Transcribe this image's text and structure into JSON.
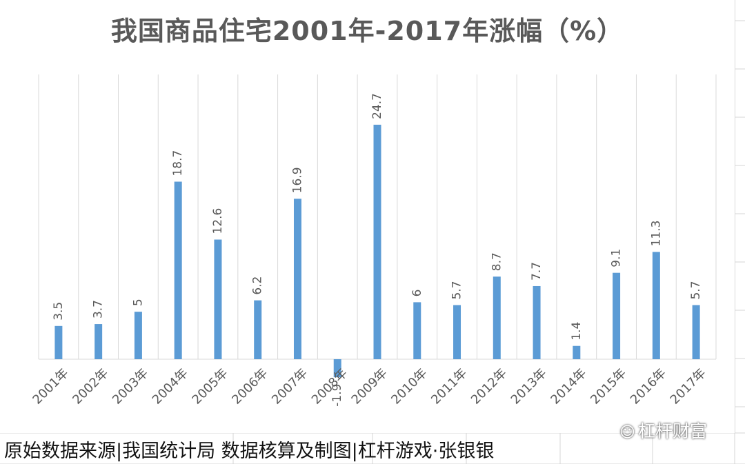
{
  "chart_data": {
    "type": "bar",
    "title": "我国商品住宅2001年-2017年涨幅（%）",
    "categories": [
      "2001年",
      "2002年",
      "2003年",
      "2004年",
      "2005年",
      "2006年",
      "2007年",
      "2008年",
      "2009年",
      "2010年",
      "2011年",
      "2012年",
      "2013年",
      "2014年",
      "2015年",
      "2016年",
      "2017年"
    ],
    "values": [
      3.5,
      3.7,
      5,
      18.7,
      12.6,
      6.2,
      16.9,
      -1.9,
      24.7,
      6,
      5.7,
      8.7,
      7.7,
      1.4,
      9.1,
      11.3,
      5.7
    ],
    "data_labels": [
      "3.5",
      "3.7",
      "5",
      "18.7",
      "12.6",
      "6.2",
      "16.9",
      "-1.9",
      "24.7",
      "6",
      "5.7",
      "8.7",
      "7.7",
      "1.4",
      "9.1",
      "11.3",
      "5.7"
    ],
    "xlabel": "",
    "ylabel": "",
    "ylim": [
      -2,
      30
    ],
    "grid": "vertical",
    "legend": "none",
    "bar_color": "#5b9bd5"
  },
  "footer": {
    "note": "原始数据来源|我国统计局  数据核算及制图|杠杆游戏·张银银"
  },
  "watermark": {
    "icon": "wechat-icon",
    "glyph": "☺",
    "text": "杠杆财富"
  }
}
